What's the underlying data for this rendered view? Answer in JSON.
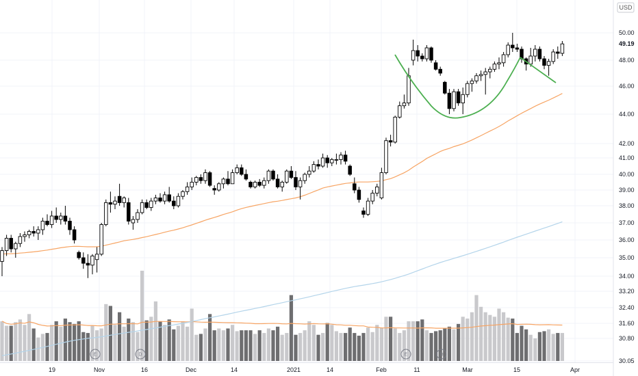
{
  "currency_label": "USD",
  "last_price_label": "49.19",
  "chart_data": {
    "type": "candlestick",
    "price_axis_ticks": [
      30.05,
      30.8,
      31.6,
      32.4,
      33.2,
      34.0,
      35.0,
      36.0,
      37.0,
      38.0,
      39.0,
      40.0,
      41.0,
      42.0,
      44.0,
      46.0,
      48.0,
      50.0
    ],
    "price_axis_tick_labels": [
      "30.05",
      "30.80",
      "31.60",
      "32.40",
      "33.20",
      "34.00",
      "35.00",
      "36.00",
      "37.00",
      "38.00",
      "39.00",
      "40.00",
      "41.00",
      "42.00",
      "44.00",
      "46.00",
      "48.00",
      "50.00"
    ],
    "x_tick_labels": [
      "19",
      "Nov",
      "16",
      "Dec",
      "14",
      "2021",
      "14",
      "Feb",
      "11",
      "Mar",
      "15",
      "Apr"
    ],
    "last_price": 49.19,
    "colors": {
      "up_candle": "#ffffff",
      "down_candle": "#000000",
      "sma_short": "#f7a463",
      "sma_long": "#b3d4ea",
      "cup_pattern": "#4caf50",
      "vol_up": "#c9c9cc",
      "vol_down": "#6e6e70",
      "vol_avg": "#f7a463"
    },
    "event_markers": [
      {
        "label": "E"
      },
      {
        "label": "D"
      },
      {
        "label": "E"
      },
      {
        "label": "D"
      }
    ],
    "ohlc": [
      [
        34.8,
        35.6,
        34.0,
        35.4
      ],
      [
        35.4,
        36.3,
        35.1,
        36.1
      ],
      [
        36.1,
        36.3,
        35.3,
        35.5
      ],
      [
        35.5,
        35.9,
        35.0,
        35.8
      ],
      [
        35.8,
        36.4,
        35.6,
        36.2
      ],
      [
        36.2,
        36.5,
        35.9,
        36.3
      ],
      [
        36.3,
        36.6,
        36.1,
        36.5
      ],
      [
        36.5,
        36.8,
        36.2,
        36.4
      ],
      [
        36.4,
        36.8,
        36.0,
        36.6
      ],
      [
        36.6,
        37.3,
        36.3,
        37.1
      ],
      [
        37.1,
        37.5,
        36.8,
        36.9
      ],
      [
        36.9,
        37.7,
        36.7,
        37.4
      ],
      [
        37.4,
        37.9,
        37.0,
        37.2
      ],
      [
        37.2,
        37.6,
        36.9,
        37.4
      ],
      [
        37.4,
        38.0,
        36.9,
        37.1
      ],
      [
        37.1,
        37.3,
        36.3,
        36.6
      ],
      [
        36.6,
        36.8,
        35.8,
        36.0
      ],
      [
        35.3,
        35.4,
        34.9,
        35.0
      ],
      [
        35.0,
        35.3,
        34.4,
        34.7
      ],
      [
        34.7,
        35.2,
        33.9,
        34.6
      ],
      [
        34.6,
        35.2,
        34.1,
        35.1
      ],
      [
        34.9,
        35.6,
        34.2,
        35.2
      ],
      [
        35.2,
        37.0,
        35.1,
        36.9
      ],
      [
        36.9,
        38.4,
        36.8,
        38.2
      ],
      [
        38.2,
        38.9,
        37.6,
        38.1
      ],
      [
        38.1,
        38.6,
        37.8,
        38.3
      ],
      [
        38.6,
        39.4,
        38.0,
        38.2
      ],
      [
        38.2,
        38.6,
        37.9,
        38.5
      ],
      [
        38.2,
        38.5,
        36.9,
        37.1
      ],
      [
        37.0,
        37.4,
        36.6,
        37.2
      ],
      [
        37.2,
        37.8,
        37.0,
        37.6
      ],
      [
        37.6,
        38.4,
        37.5,
        38.2
      ],
      [
        38.2,
        38.4,
        37.8,
        37.9
      ],
      [
        37.9,
        38.5,
        37.7,
        38.3
      ],
      [
        38.3,
        38.7,
        38.1,
        38.5
      ],
      [
        38.5,
        38.8,
        38.2,
        38.3
      ],
      [
        38.3,
        38.9,
        38.1,
        38.7
      ],
      [
        38.7,
        39.2,
        38.2,
        38.3
      ],
      [
        38.3,
        38.6,
        37.8,
        38.0
      ],
      [
        38.0,
        38.8,
        37.9,
        38.6
      ],
      [
        38.6,
        39.0,
        38.4,
        38.9
      ],
      [
        38.9,
        39.5,
        38.7,
        39.2
      ],
      [
        39.2,
        39.8,
        39.0,
        39.5
      ],
      [
        39.5,
        39.9,
        39.3,
        39.8
      ],
      [
        39.8,
        40.0,
        39.4,
        39.6
      ],
      [
        39.6,
        40.3,
        39.4,
        40.1
      ],
      [
        40.1,
        40.2,
        39.2,
        39.3
      ],
      [
        39.1,
        39.3,
        38.7,
        39.0
      ],
      [
        39.0,
        39.5,
        38.9,
        39.4
      ],
      [
        39.4,
        39.8,
        39.1,
        39.7
      ],
      [
        39.7,
        40.2,
        39.3,
        39.4
      ],
      [
        39.4,
        40.3,
        39.4,
        40.1
      ],
      [
        40.1,
        40.6,
        40.0,
        40.4
      ],
      [
        40.4,
        40.6,
        39.9,
        40.0
      ],
      [
        40.0,
        40.3,
        39.6,
        39.7
      ],
      [
        39.5,
        39.6,
        39.1,
        39.2
      ],
      [
        39.2,
        39.6,
        39.1,
        39.5
      ],
      [
        39.5,
        39.7,
        39.2,
        39.3
      ],
      [
        39.3,
        39.8,
        39.1,
        39.6
      ],
      [
        39.6,
        40.3,
        39.4,
        40.2
      ],
      [
        40.2,
        40.3,
        39.6,
        39.7
      ],
      [
        39.7,
        40.0,
        39.1,
        39.2
      ],
      [
        39.2,
        39.6,
        38.9,
        39.5
      ],
      [
        39.5,
        40.3,
        39.4,
        40.2
      ],
      [
        40.2,
        40.5,
        39.7,
        39.8
      ],
      [
        39.8,
        40.2,
        39.0,
        39.2
      ],
      [
        39.2,
        39.8,
        38.4,
        39.6
      ],
      [
        39.6,
        40.1,
        39.4,
        40.0
      ],
      [
        40.0,
        40.5,
        39.8,
        40.2
      ],
      [
        40.2,
        40.8,
        40.1,
        40.6
      ],
      [
        40.6,
        40.9,
        40.3,
        40.5
      ],
      [
        40.5,
        41.3,
        40.4,
        41.0
      ],
      [
        41.0,
        41.2,
        40.4,
        40.7
      ],
      [
        40.7,
        41.0,
        40.5,
        40.9
      ],
      [
        40.9,
        41.3,
        40.6,
        40.9
      ],
      [
        40.9,
        41.4,
        40.6,
        41.2
      ],
      [
        41.2,
        41.5,
        40.6,
        40.8
      ],
      [
        40.5,
        40.6,
        39.9,
        40.0
      ],
      [
        39.4,
        39.8,
        38.8,
        39.0
      ],
      [
        39.0,
        39.2,
        38.2,
        38.4
      ],
      [
        37.7,
        37.9,
        37.3,
        37.5
      ],
      [
        37.5,
        38.5,
        37.4,
        38.3
      ],
      [
        38.3,
        39.0,
        38.1,
        38.8
      ],
      [
        38.8,
        39.4,
        38.6,
        39.2
      ],
      [
        38.5,
        40.4,
        38.4,
        40.1
      ],
      [
        40.1,
        42.4,
        40.0,
        42.2
      ],
      [
        42.2,
        42.6,
        41.8,
        42.1
      ],
      [
        42.1,
        43.9,
        42.0,
        43.8
      ],
      [
        43.8,
        44.9,
        43.7,
        44.6
      ],
      [
        44.6,
        45.4,
        44.4,
        44.8
      ],
      [
        44.8,
        47.4,
        44.6,
        46.8
      ],
      [
        48.0,
        49.5,
        47.6,
        48.7
      ],
      [
        48.7,
        49.1,
        47.9,
        48.3
      ],
      [
        48.3,
        48.5,
        47.9,
        48.1
      ],
      [
        48.1,
        49.1,
        47.9,
        48.9
      ],
      [
        48.9,
        49.0,
        47.8,
        48.0
      ],
      [
        47.8,
        48.0,
        47.2,
        47.3
      ],
      [
        47.3,
        47.5,
        46.8,
        47.0
      ],
      [
        46.3,
        46.4,
        45.4,
        45.5
      ],
      [
        45.5,
        45.8,
        44.0,
        44.4
      ],
      [
        44.4,
        45.8,
        44.2,
        45.6
      ],
      [
        45.6,
        45.8,
        44.6,
        44.8
      ],
      [
        44.8,
        45.9,
        44.0,
        45.4
      ],
      [
        45.4,
        46.4,
        45.2,
        46.2
      ],
      [
        46.2,
        46.6,
        45.6,
        46.4
      ],
      [
        46.4,
        47.0,
        46.2,
        46.8
      ],
      [
        46.8,
        47.2,
        46.4,
        46.9
      ],
      [
        46.9,
        47.4,
        45.4,
        47.1
      ],
      [
        47.1,
        47.5,
        46.6,
        47.3
      ],
      [
        47.3,
        47.9,
        47.1,
        47.7
      ],
      [
        47.7,
        48.2,
        47.3,
        47.8
      ],
      [
        47.8,
        48.6,
        47.5,
        48.4
      ],
      [
        48.4,
        49.3,
        48.2,
        49.1
      ],
      [
        49.1,
        50.0,
        48.6,
        48.9
      ],
      [
        48.9,
        49.2,
        48.6,
        48.8
      ],
      [
        48.8,
        49.0,
        47.8,
        48.1
      ],
      [
        48.1,
        48.2,
        47.2,
        47.7
      ],
      [
        47.7,
        48.9,
        47.5,
        48.3
      ],
      [
        48.3,
        49.1,
        47.9,
        48.8
      ],
      [
        48.8,
        49.0,
        47.9,
        48.1
      ],
      [
        48.1,
        48.3,
        47.3,
        47.6
      ],
      [
        47.6,
        48.1,
        46.8,
        47.9
      ],
      [
        47.9,
        48.8,
        47.7,
        48.6
      ],
      [
        48.6,
        49.0,
        48.1,
        48.5
      ],
      [
        48.5,
        49.4,
        48.3,
        49.19
      ]
    ],
    "volume": [
      0.44,
      0.39,
      0.39,
      0.43,
      0.46,
      0.4,
      0.52,
      0.36,
      0.26,
      0.3,
      0.31,
      0.4,
      0.44,
      0.38,
      0.47,
      0.43,
      0.41,
      0.44,
      0.32,
      0.31,
      0.39,
      0.34,
      0.36,
      0.63,
      0.61,
      0.4,
      0.54,
      0.38,
      0.47,
      0.43,
      0.32,
      1.0,
      0.45,
      0.49,
      0.66,
      0.44,
      0.4,
      0.46,
      0.35,
      0.39,
      0.44,
      0.38,
      0.58,
      0.29,
      0.3,
      0.36,
      0.52,
      0.34,
      0.36,
      0.34,
      0.36,
      0.4,
      0.33,
      0.34,
      0.34,
      0.34,
      0.3,
      0.34,
      0.31,
      0.36,
      0.34,
      0.38,
      0.29,
      0.31,
      0.73,
      0.29,
      0.31,
      0.34,
      0.44,
      0.4,
      0.29,
      0.31,
      0.42,
      0.4,
      0.33,
      0.31,
      0.31,
      0.37,
      0.31,
      0.28,
      0.31,
      0.37,
      0.32,
      0.4,
      0.37,
      0.49,
      0.49,
      0.36,
      0.31,
      0.34,
      0.44,
      0.44,
      0.44,
      0.46,
      0.34,
      0.31,
      0.33,
      0.34,
      0.36,
      0.38,
      0.35,
      0.41,
      0.49,
      0.47,
      0.54,
      0.73,
      0.6,
      0.54,
      0.51,
      0.49,
      0.58,
      0.54,
      0.48,
      0.47,
      0.31,
      0.39,
      0.35,
      0.29,
      0.25,
      0.32,
      0.33,
      0.35,
      0.3,
      0.31,
      0.31
    ]
  }
}
